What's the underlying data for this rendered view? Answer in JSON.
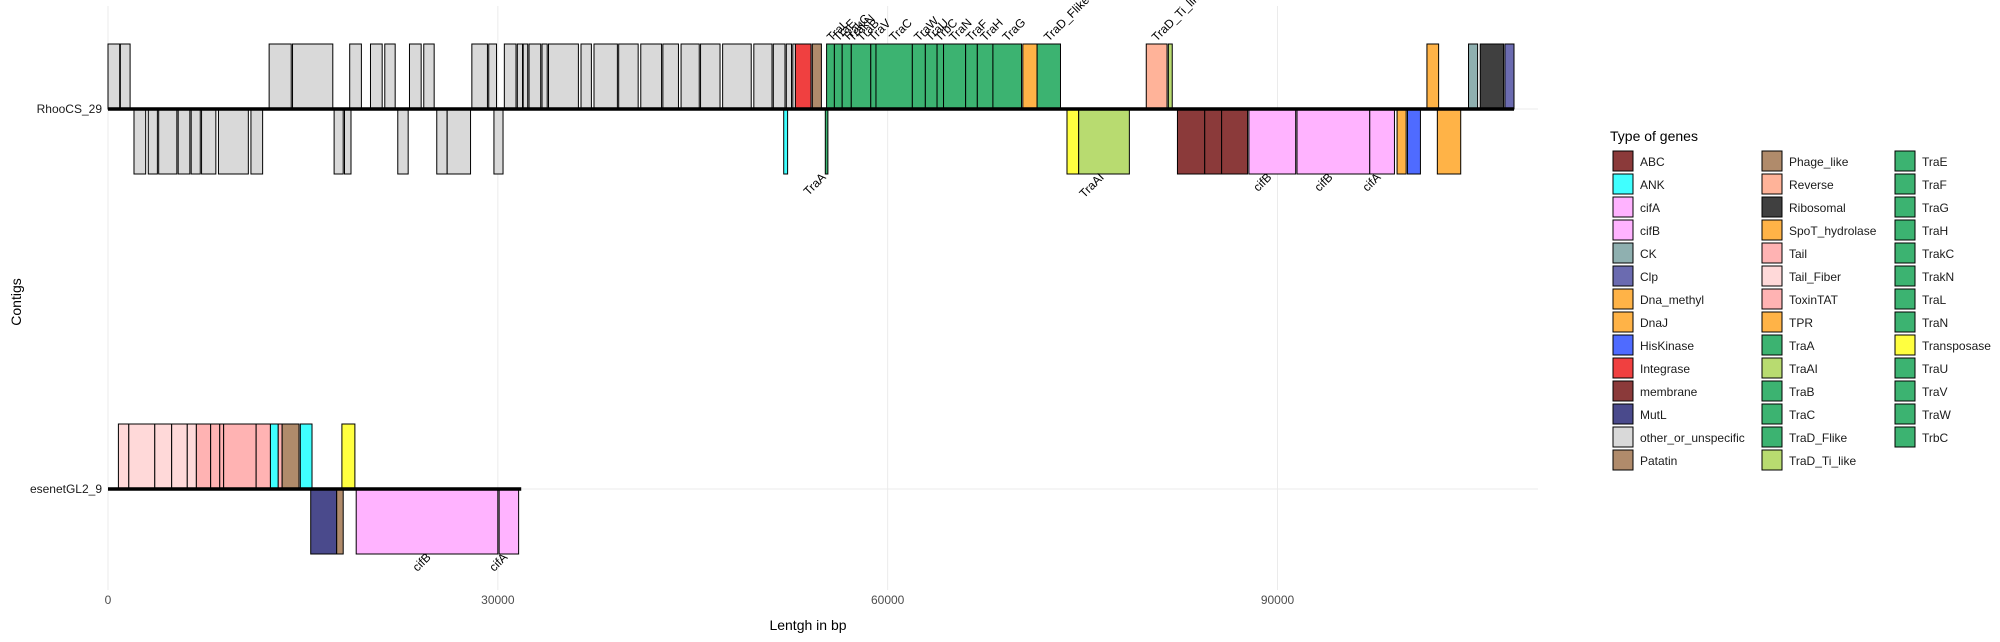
{
  "colors": {
    "ABC": "#8B3A3A",
    "ANK": "#40FFFF",
    "cifA": "#FFB3FF",
    "cifB": "#FFB3FF",
    "CK": "#8FB0B0",
    "Clp": "#6B6BB0",
    "Dna_methyl": "#FFB347",
    "DnaJ": "#FFB347",
    "HisKinase": "#4F6BFF",
    "Integrase": "#F04040",
    "membrane": "#8B3A3A",
    "MutL": "#4A4A8C",
    "other_or_unspecific": "#D9D9D9",
    "Patatin": "#B08B6B",
    "Phage_like": "#B08B6B",
    "Reverse": "#FFB399",
    "Ribosomal": "#404040",
    "SpoT_hydrolase": "#FFB347",
    "Tail": "#FFB3B3",
    "Tail_Fiber": "#FFD9D9",
    "ToxinTAT": "#FFB3B3",
    "TPR": "#FFB347",
    "TraA": "#3CB371",
    "TraAI": "#B8DB70",
    "TraB": "#3CB371",
    "TraC": "#3CB371",
    "TraD_Flike": "#3CB371",
    "TraD_Ti_like": "#B8DB70",
    "TraE": "#3CB371",
    "TraF": "#3CB371",
    "TraG": "#3CB371",
    "TraH": "#3CB371",
    "TrakC": "#3CB371",
    "TrakN": "#3CB371",
    "TraL": "#3CB371",
    "TraN": "#3CB371",
    "Transposase": "#FFFF40",
    "TraU": "#3CB371",
    "TraV": "#3CB371",
    "TraW": "#3CB371",
    "TrbC": "#3CB371"
  },
  "chart_data": {
    "type": "gene_map",
    "xlabel": "Lentgh in bp",
    "ylabel": "Contigs",
    "xlim": [
      -2000,
      111000
    ],
    "x_ticks": [
      0,
      30000,
      60000,
      90000
    ],
    "x_tick_labels": [
      "0",
      "30000",
      "60000",
      "90000"
    ],
    "legend_title": "Type of genes",
    "legend_columns": [
      [
        "ABC",
        "ANK",
        "cifA",
        "cifB",
        "CK",
        "Clp",
        "Dna_methyl",
        "DnaJ",
        "HisKinase",
        "Integrase",
        "membrane",
        "MutL",
        "other_or_unspecific",
        "Patatin"
      ],
      [
        "Phage_like",
        "Reverse",
        "Ribosomal",
        "SpoT_hydrolase",
        "Tail",
        "Tail_Fiber",
        "ToxinTAT",
        "TPR",
        "TraA",
        "TraAI",
        "TraB",
        "TraC",
        "TraD_Flike",
        "TraD_Ti_like"
      ],
      [
        "TraE",
        "TraF",
        "TraG",
        "TraH",
        "TrakC",
        "TrakN",
        "TraL",
        "TraN",
        "Transposase",
        "TraU",
        "TraV",
        "TraW",
        "TrbC"
      ]
    ],
    "contigs": [
      {
        "name": "RhooCS_29",
        "length": 108200,
        "genes": [
          {
            "type": "other_or_unspecific",
            "start": 0,
            "end": 900,
            "strand": 1
          },
          {
            "type": "other_or_unspecific",
            "start": 950,
            "end": 1700,
            "strand": 1
          },
          {
            "type": "other_or_unspecific",
            "start": 2000,
            "end": 2900,
            "strand": -1
          },
          {
            "type": "other_or_unspecific",
            "start": 3100,
            "end": 3800,
            "strand": -1
          },
          {
            "type": "other_or_unspecific",
            "start": 3900,
            "end": 5300,
            "strand": -1
          },
          {
            "type": "other_or_unspecific",
            "start": 5400,
            "end": 6300,
            "strand": -1
          },
          {
            "type": "other_or_unspecific",
            "start": 6400,
            "end": 7100,
            "strand": -1
          },
          {
            "type": "other_or_unspecific",
            "start": 7200,
            "end": 8300,
            "strand": -1
          },
          {
            "type": "other_or_unspecific",
            "start": 8500,
            "end": 10800,
            "strand": -1
          },
          {
            "type": "other_or_unspecific",
            "start": 11000,
            "end": 11900,
            "strand": -1
          },
          {
            "type": "other_or_unspecific",
            "start": 12400,
            "end": 14100,
            "strand": 1
          },
          {
            "type": "other_or_unspecific",
            "start": 14200,
            "end": 17300,
            "strand": 1
          },
          {
            "type": "other_or_unspecific",
            "start": 17400,
            "end": 18100,
            "strand": -1
          },
          {
            "type": "other_or_unspecific",
            "start": 18200,
            "end": 18700,
            "strand": -1
          },
          {
            "type": "other_or_unspecific",
            "start": 18600,
            "end": 19500,
            "strand": 1
          },
          {
            "type": "other_or_unspecific",
            "start": 20200,
            "end": 21100,
            "strand": 1
          },
          {
            "type": "other_or_unspecific",
            "start": 21300,
            "end": 22100,
            "strand": 1
          },
          {
            "type": "other_or_unspecific",
            "start": 22300,
            "end": 23100,
            "strand": -1
          },
          {
            "type": "other_or_unspecific",
            "start": 23200,
            "end": 24100,
            "strand": 1
          },
          {
            "type": "other_or_unspecific",
            "start": 24300,
            "end": 25100,
            "strand": 1
          },
          {
            "type": "other_or_unspecific",
            "start": 25300,
            "end": 26100,
            "strand": -1
          },
          {
            "type": "other_or_unspecific",
            "start": 26100,
            "end": 27900,
            "strand": -1
          },
          {
            "type": "other_or_unspecific",
            "start": 28000,
            "end": 29200,
            "strand": 1
          },
          {
            "type": "other_or_unspecific",
            "start": 29300,
            "end": 29900,
            "strand": 1
          },
          {
            "type": "other_or_unspecific",
            "start": 29700,
            "end": 30400,
            "strand": -1
          },
          {
            "type": "other_or_unspecific",
            "start": 30500,
            "end": 31400,
            "strand": 1
          },
          {
            "type": "other_or_unspecific",
            "start": 31500,
            "end": 31900,
            "strand": 1
          },
          {
            "type": "other_or_unspecific",
            "start": 31950,
            "end": 32300,
            "strand": 1
          },
          {
            "type": "other_or_unspecific",
            "start": 32400,
            "end": 33300,
            "strand": 1
          },
          {
            "type": "other_or_unspecific",
            "start": 33400,
            "end": 33800,
            "strand": 1
          },
          {
            "type": "other_or_unspecific",
            "start": 33900,
            "end": 36200,
            "strand": 1
          },
          {
            "type": "other_or_unspecific",
            "start": 36400,
            "end": 37200,
            "strand": 1
          },
          {
            "type": "other_or_unspecific",
            "start": 37400,
            "end": 39200,
            "strand": 1
          },
          {
            "type": "other_or_unspecific",
            "start": 39300,
            "end": 40800,
            "strand": 1
          },
          {
            "type": "other_or_unspecific",
            "start": 41000,
            "end": 42600,
            "strand": 1
          },
          {
            "type": "other_or_unspecific",
            "start": 42700,
            "end": 43900,
            "strand": 1
          },
          {
            "type": "other_or_unspecific",
            "start": 44100,
            "end": 45500,
            "strand": 1
          },
          {
            "type": "other_or_unspecific",
            "start": 45600,
            "end": 47100,
            "strand": 1
          },
          {
            "type": "other_or_unspecific",
            "start": 47300,
            "end": 49500,
            "strand": 1
          },
          {
            "type": "other_or_unspecific",
            "start": 49700,
            "end": 51100,
            "strand": 1
          },
          {
            "type": "other_or_unspecific",
            "start": 51200,
            "end": 52100,
            "strand": 1
          },
          {
            "type": "other_or_unspecific",
            "start": 52200,
            "end": 52600,
            "strand": 1
          },
          {
            "type": "other_or_unspecific",
            "start": 52700,
            "end": 53200,
            "strand": 1
          },
          {
            "type": "ANK",
            "start": 52000,
            "end": 52300,
            "strand": -1
          },
          {
            "type": "Integrase",
            "start": 52900,
            "end": 54100,
            "strand": 1
          },
          {
            "type": "Patatin",
            "start": 54200,
            "end": 54900,
            "strand": 1
          },
          {
            "type": "TraA",
            "start": 55200,
            "end": 55400,
            "strand": -1
          },
          {
            "type": "TraL",
            "start": 55300,
            "end": 55900,
            "strand": 1
          },
          {
            "type": "TraE",
            "start": 55900,
            "end": 56500,
            "strand": 1
          },
          {
            "type": "TrakC",
            "start": 56500,
            "end": 57200,
            "strand": 1
          },
          {
            "type": "TraB",
            "start": 57200,
            "end": 58700,
            "strand": 1
          },
          {
            "type": "TraV",
            "start": 58700,
            "end": 59100,
            "strand": 1
          },
          {
            "type": "TraC",
            "start": 59100,
            "end": 61900,
            "strand": 1
          },
          {
            "type": "TraW",
            "start": 61900,
            "end": 62900,
            "strand": 1
          },
          {
            "type": "TraU",
            "start": 62900,
            "end": 63800,
            "strand": 1
          },
          {
            "type": "TrbC",
            "start": 63800,
            "end": 64300,
            "strand": 1
          },
          {
            "type": "TraN",
            "start": 64300,
            "end": 66000,
            "strand": 1
          },
          {
            "type": "TraF",
            "start": 66000,
            "end": 66900,
            "strand": 1
          },
          {
            "type": "TraH",
            "start": 66900,
            "end": 68100,
            "strand": 1
          },
          {
            "type": "TraG",
            "start": 68100,
            "end": 70300,
            "strand": 1
          },
          {
            "type": "SpoT_hydrolase",
            "start": 70400,
            "end": 71500,
            "strand": 1
          },
          {
            "type": "TraD_Flike",
            "start": 71500,
            "end": 73300,
            "strand": 1
          },
          {
            "type": "Transposase",
            "start": 73800,
            "end": 74700,
            "strand": -1
          },
          {
            "type": "TraAI",
            "start": 74700,
            "end": 78600,
            "strand": -1
          },
          {
            "type": "Reverse",
            "start": 79900,
            "end": 81500,
            "strand": 1
          },
          {
            "type": "TraD_Ti_like",
            "start": 81600,
            "end": 81900,
            "strand": 1
          },
          {
            "type": "membrane",
            "start": 82300,
            "end": 84400,
            "strand": -1
          },
          {
            "type": "membrane",
            "start": 84400,
            "end": 85700,
            "strand": -1
          },
          {
            "type": "ABC",
            "start": 85700,
            "end": 87700,
            "strand": -1
          },
          {
            "type": "cifB",
            "start": 87800,
            "end": 91400,
            "strand": -1
          },
          {
            "type": "cifB",
            "start": 91500,
            "end": 97100,
            "strand": -1
          },
          {
            "type": "cifA",
            "start": 97100,
            "end": 99000,
            "strand": -1
          },
          {
            "type": "DnaJ",
            "start": 99200,
            "end": 99900,
            "strand": -1
          },
          {
            "type": "HisKinase",
            "start": 100000,
            "end": 101000,
            "strand": -1
          },
          {
            "type": "Dna_methyl",
            "start": 101500,
            "end": 102400,
            "strand": 1
          },
          {
            "type": "TPR",
            "start": 102300,
            "end": 104100,
            "strand": -1
          },
          {
            "type": "CK",
            "start": 104700,
            "end": 105400,
            "strand": 1
          },
          {
            "type": "Ribosomal",
            "start": 105600,
            "end": 107400,
            "strand": 1
          },
          {
            "type": "Clp",
            "start": 107500,
            "end": 108200,
            "strand": 1
          }
        ],
        "labels_top": [
          {
            "text": "TraL",
            "pos": 55700
          },
          {
            "text": "TraE",
            "pos": 56200
          },
          {
            "text": "TrakC",
            "pos": 56900
          },
          {
            "text": "TrakN",
            "pos": 57300
          },
          {
            "text": "TraB",
            "pos": 58000
          },
          {
            "text": "TraV",
            "pos": 58900
          },
          {
            "text": "TraC",
            "pos": 60500
          },
          {
            "text": "TraW",
            "pos": 62400
          },
          {
            "text": "TraU",
            "pos": 63300
          },
          {
            "text": "TrbC",
            "pos": 64000
          },
          {
            "text": "TraN",
            "pos": 65100
          },
          {
            "text": "TraF",
            "pos": 66400
          },
          {
            "text": "TraH",
            "pos": 67500
          },
          {
            "text": "TraG",
            "pos": 69200
          },
          {
            "text": "TraD_Flike",
            "pos": 72400
          },
          {
            "text": "TraD_Ti_like",
            "pos": 80700
          }
        ],
        "labels_bottom": [
          {
            "text": "TraA",
            "pos": 55300
          },
          {
            "text": "TraAI",
            "pos": 76700
          },
          {
            "text": "cifB",
            "pos": 89600
          },
          {
            "text": "cifB",
            "pos": 94300
          },
          {
            "text": "cifA",
            "pos": 98000
          }
        ]
      },
      {
        "name": "esenetGL2_9",
        "length": 31800,
        "genes": [
          {
            "type": "Tail_Fiber",
            "start": 800,
            "end": 1600,
            "strand": 1
          },
          {
            "type": "Tail_Fiber",
            "start": 1600,
            "end": 3600,
            "strand": 1
          },
          {
            "type": "Tail_Fiber",
            "start": 3600,
            "end": 4900,
            "strand": 1
          },
          {
            "type": "Tail_Fiber",
            "start": 4900,
            "end": 6100,
            "strand": 1
          },
          {
            "type": "Tail_Fiber",
            "start": 6100,
            "end": 6800,
            "strand": 1
          },
          {
            "type": "Tail",
            "start": 6800,
            "end": 7900,
            "strand": 1
          },
          {
            "type": "Tail",
            "start": 7900,
            "end": 8600,
            "strand": 1
          },
          {
            "type": "Tail",
            "start": 8600,
            "end": 8900,
            "strand": 1
          },
          {
            "type": "Tail",
            "start": 8900,
            "end": 11400,
            "strand": 1
          },
          {
            "type": "Tail",
            "start": 11400,
            "end": 12500,
            "strand": 1
          },
          {
            "type": "ANK",
            "start": 12500,
            "end": 13100,
            "strand": 1
          },
          {
            "type": "Tail",
            "start": 13100,
            "end": 13400,
            "strand": 1
          },
          {
            "type": "Phage_like",
            "start": 13400,
            "end": 14700,
            "strand": 1
          },
          {
            "type": "ANK",
            "start": 14800,
            "end": 15700,
            "strand": 1
          },
          {
            "type": "MutL",
            "start": 15600,
            "end": 17600,
            "strand": -1
          },
          {
            "type": "Phage_like",
            "start": 17600,
            "end": 18100,
            "strand": -1
          },
          {
            "type": "Transposase",
            "start": 18000,
            "end": 19000,
            "strand": 1
          },
          {
            "type": "cifB",
            "start": 19100,
            "end": 30000,
            "strand": -1
          },
          {
            "type": "cifA",
            "start": 30100,
            "end": 31600,
            "strand": -1
          }
        ],
        "labels_top": [],
        "labels_bottom": [
          {
            "text": "cifB",
            "pos": 24900
          },
          {
            "text": "cifA",
            "pos": 30800
          }
        ]
      }
    ]
  }
}
